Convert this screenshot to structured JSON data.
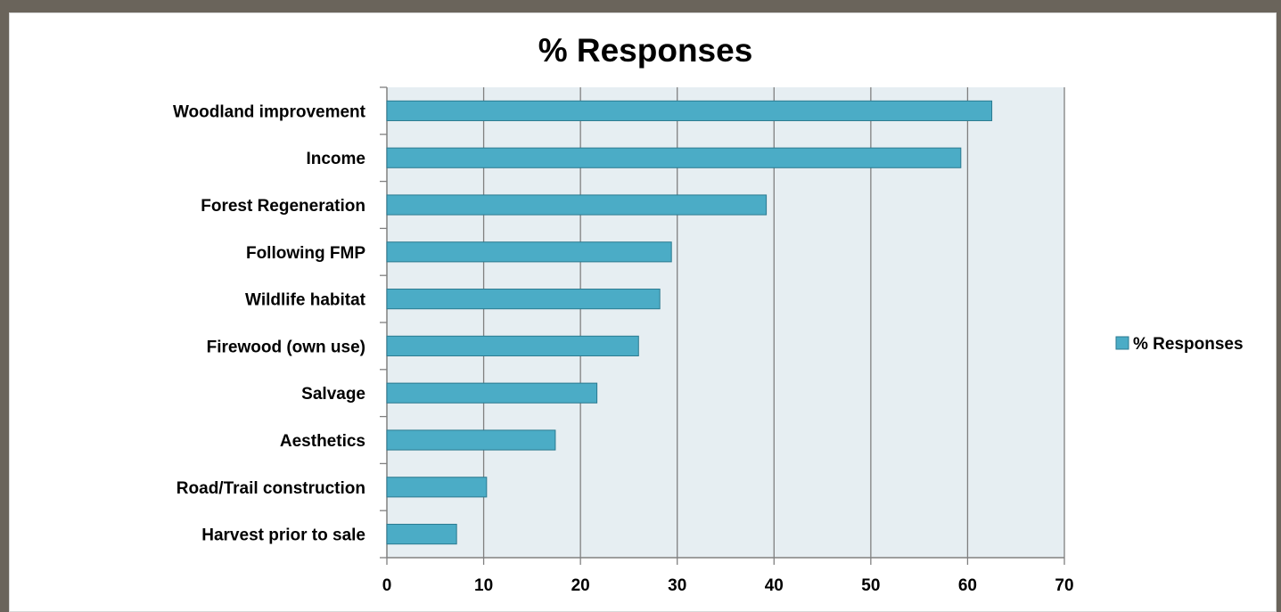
{
  "chart_data": {
    "type": "bar",
    "orientation": "horizontal",
    "title": "% Responses",
    "categories": [
      "Woodland improvement",
      "Income",
      "Forest Regeneration",
      "Following FMP",
      "Wildlife habitat",
      "Firewood (own use)",
      "Salvage",
      "Aesthetics",
      "Road/Trail construction",
      "Harvest prior to sale"
    ],
    "series": [
      {
        "name": "% Responses",
        "values": [
          62.5,
          59.3,
          39.2,
          29.4,
          28.2,
          26.0,
          21.7,
          17.4,
          10.3,
          7.2
        ]
      }
    ],
    "xlim": [
      0,
      70
    ],
    "xticks": [
      "0",
      "10",
      "20",
      "30",
      "40",
      "50",
      "60",
      "70"
    ],
    "grid": true,
    "legend_position": "right",
    "colors": {
      "bar_fill": "#4bacc6",
      "bar_stroke": "#2b7a90",
      "plot_background": "#e6eef2",
      "gridline": "#808080"
    }
  }
}
